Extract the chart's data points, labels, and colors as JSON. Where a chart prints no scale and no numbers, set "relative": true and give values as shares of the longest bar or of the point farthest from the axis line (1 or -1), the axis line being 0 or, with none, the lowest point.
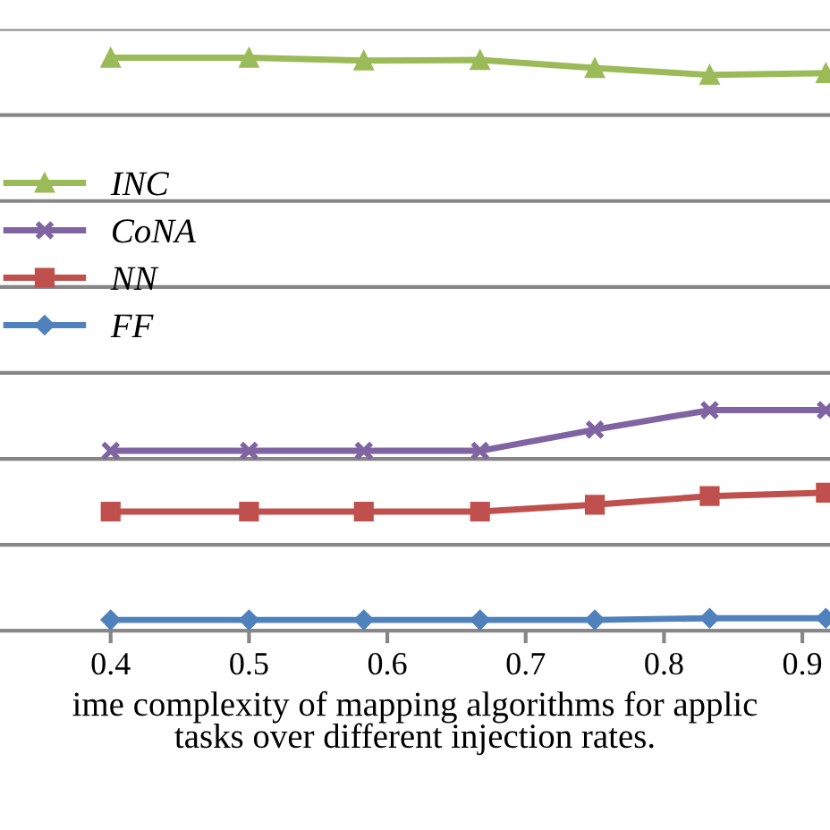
{
  "chart_data": {
    "type": "line",
    "relative": true,
    "xlabel": "ime complexity of mapping algorithms for applic\ntasks over different injection rates.",
    "x": [
      0.4,
      0.5,
      0.583,
      0.667,
      0.75,
      0.833,
      0.917
    ],
    "xlim": [
      0.32,
      0.92
    ],
    "xticks": [
      0.4,
      0.5,
      0.6,
      0.7,
      0.8,
      0.9
    ],
    "series": [
      {
        "name": "INC",
        "color": "#9bbb59",
        "marker": "triangle",
        "values": [
          1.0,
          1.0,
          0.995,
          0.996,
          0.982,
          0.97,
          0.973
        ]
      },
      {
        "name": "CoNA",
        "color": "#8064a2",
        "marker": "cross",
        "values": [
          0.314,
          0.314,
          0.314,
          0.314,
          0.351,
          0.385,
          0.385
        ]
      },
      {
        "name": "NN",
        "color": "#c0504d",
        "marker": "square",
        "values": [
          0.208,
          0.208,
          0.208,
          0.208,
          0.22,
          0.235,
          0.241
        ]
      },
      {
        "name": "FF",
        "color": "#4f81bd",
        "marker": "diamond",
        "values": [
          0.019,
          0.019,
          0.019,
          0.019,
          0.019,
          0.022,
          0.022
        ]
      }
    ],
    "grid": "y",
    "legend": "left",
    "line_style": "solid"
  }
}
